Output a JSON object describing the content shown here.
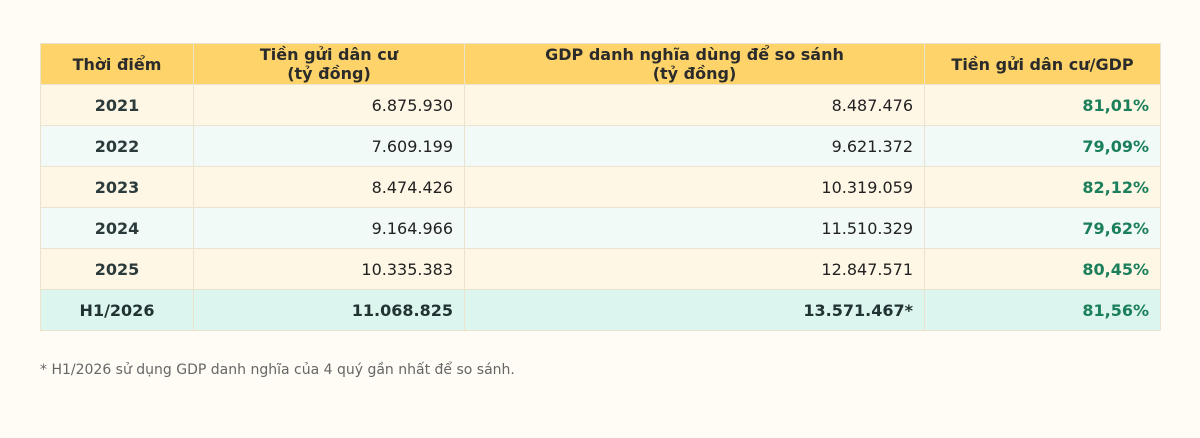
{
  "table": {
    "header": [
      "Thời điểm",
      "Tiền gửi dân cư\n(tỷ đồng)",
      "GDP danh nghĩa dùng để so sánh\n(tỷ đồng)",
      "Tiền gửi dân cư/GDP"
    ],
    "rows": [
      [
        "2021",
        "6.875.930",
        "8.487.476",
        "81,01%"
      ],
      [
        "2022",
        "7.609.199",
        "9.621.372",
        "79,09%"
      ],
      [
        "2023",
        "8.474.426",
        "10.319.059",
        "82,12%"
      ],
      [
        "2024",
        "9.164.966",
        "11.510.329",
        "79,62%"
      ],
      [
        "2025",
        "10.335.383",
        "12.847.571",
        "80,45%"
      ],
      [
        "H1/2026",
        "11.068.825",
        "13.571.467*",
        "81,56%"
      ]
    ]
  },
  "footnote": "* H1/2026 sử dụng GDP danh nghĩa của 4 quý gần nhất để so sánh."
}
